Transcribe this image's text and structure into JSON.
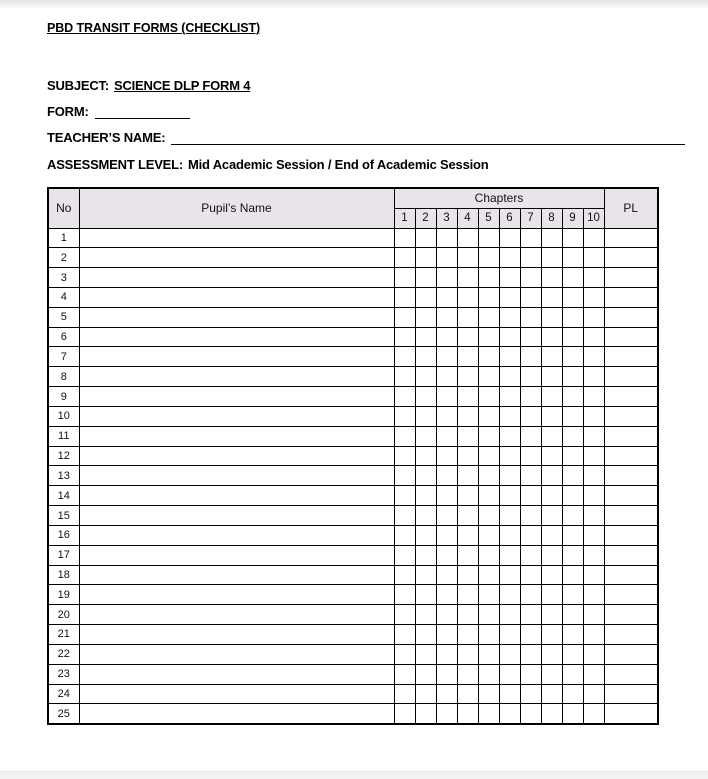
{
  "document": {
    "title": "PBD TRANSIT FORMS (CHECKLIST)",
    "fields": {
      "subject": {
        "label": "SUBJECT:",
        "value": "SCIENCE DLP FORM 4"
      },
      "form": {
        "label": "FORM:",
        "value": ""
      },
      "teacher": {
        "label": "TEACHER’S NAME:",
        "value": ""
      },
      "assessment": {
        "label": "ASSESSMENT LEVEL:",
        "value": "Mid Academic Session / End of Academic Session"
      }
    },
    "table": {
      "headers": {
        "no": "No",
        "pupil_name": "Pupil’s Name",
        "chapters": "Chapters",
        "pl": "PL"
      },
      "chapter_numbers": [
        "1",
        "2",
        "3",
        "4",
        "5",
        "6",
        "7",
        "8",
        "9",
        "10"
      ],
      "row_numbers": [
        "1",
        "2",
        "3",
        "4",
        "5",
        "6",
        "7",
        "8",
        "9",
        "10",
        "11",
        "12",
        "13",
        "14",
        "15",
        "16",
        "17",
        "18",
        "19",
        "20",
        "21",
        "22",
        "23",
        "24",
        "25"
      ],
      "cell_value_empty": ""
    },
    "colors": {
      "header_bg": "#e8e4ea",
      "table_border": "#000000",
      "page_bg": "#ffffff",
      "bottom_edge": "#f2f2f2"
    }
  }
}
